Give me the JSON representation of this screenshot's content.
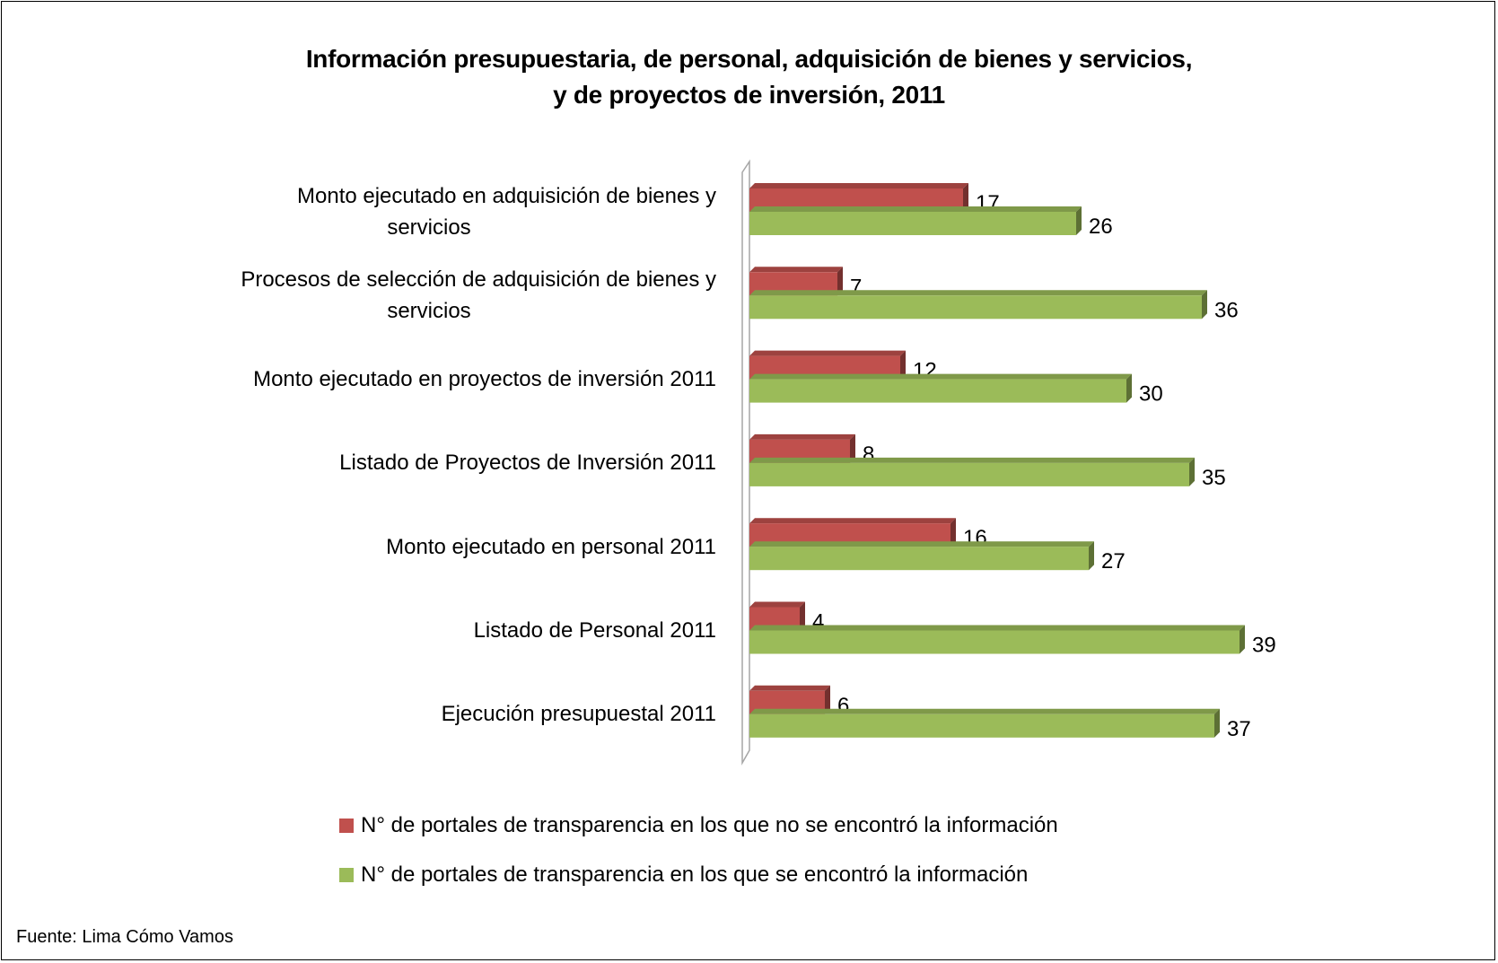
{
  "chart_data": {
    "type": "bar",
    "orientation": "horizontal",
    "title_lines": [
      "Información presupuestaria, de personal, adquisición de bienes y servicios,",
      "y de proyectos de inversión, 2011"
    ],
    "categories": [
      [
        "Monto ejecutado en adquisición de bienes y",
        "servicios"
      ],
      [
        "Procesos de selección de adquisición de bienes y",
        "servicios"
      ],
      [
        "Monto ejecutado en proyectos de inversión 2011"
      ],
      [
        "Listado de Proyectos de Inversión 2011"
      ],
      [
        "Monto ejecutado en personal 2011"
      ],
      [
        "Listado de Personal 2011"
      ],
      [
        "Ejecución presupuestal 2011"
      ]
    ],
    "series": [
      {
        "name": "N° de portales de transparencia en los que no se encontró la información",
        "color": "#c0504d",
        "values": [
          17,
          7,
          12,
          8,
          16,
          4,
          6
        ]
      },
      {
        "name": "N° de portales de transparencia en los que se encontró la información",
        "color": "#9bbb59",
        "values": [
          26,
          36,
          30,
          35,
          27,
          39,
          37
        ]
      }
    ],
    "xlim": [
      0,
      40
    ],
    "data_labels": true,
    "legend_position": "bottom",
    "style": "3d-bar"
  },
  "source": "Fuente: Lima Cómo Vamos"
}
